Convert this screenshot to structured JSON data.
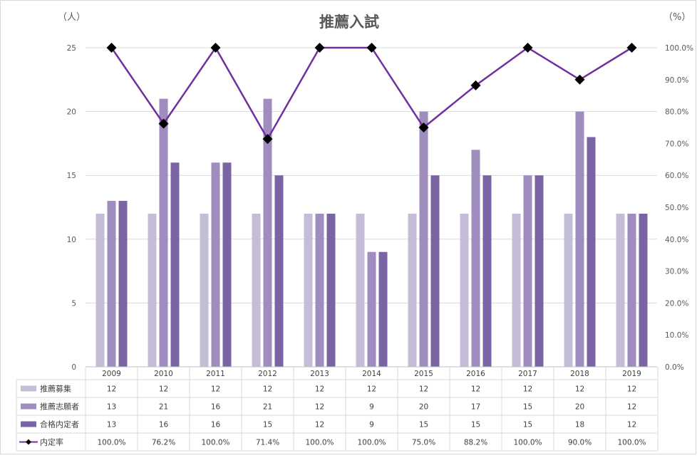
{
  "chart_data": {
    "type": "bar",
    "title": "推薦入試",
    "y_unit_left": "（人）",
    "y_unit_right": "（%）",
    "categories": [
      "2009",
      "2010",
      "2011",
      "2012",
      "2013",
      "2014",
      "2015",
      "2016",
      "2017",
      "2018",
      "2019"
    ],
    "ylim_left": [
      0,
      25
    ],
    "yticks_left": [
      "0",
      "5",
      "10",
      "15",
      "20",
      "25"
    ],
    "ylim_right": [
      0,
      100
    ],
    "yticks_right": [
      "0.0%",
      "10.0%",
      "20.0%",
      "30.0%",
      "40.0%",
      "50.0%",
      "60.0%",
      "70.0%",
      "80.0%",
      "90.0%",
      "100.0%"
    ],
    "grid": true,
    "series": [
      {
        "name": "推薦募集",
        "type": "bar",
        "color": "#c5bdd7",
        "values": [
          12,
          12,
          12,
          12,
          12,
          12,
          12,
          12,
          12,
          12,
          12
        ],
        "labels": [
          "12",
          "12",
          "12",
          "12",
          "12",
          "12",
          "12",
          "12",
          "12",
          "12",
          "12"
        ]
      },
      {
        "name": "推薦志願者",
        "type": "bar",
        "color": "#9e8dbe",
        "values": [
          13,
          21,
          16,
          21,
          12,
          9,
          20,
          17,
          15,
          20,
          12
        ],
        "labels": [
          "13",
          "21",
          "16",
          "21",
          "12",
          "9",
          "20",
          "17",
          "15",
          "20",
          "12"
        ]
      },
      {
        "name": "合格内定者",
        "type": "bar",
        "color": "#7b64a3",
        "values": [
          13,
          16,
          16,
          15,
          12,
          9,
          15,
          15,
          15,
          18,
          12
        ],
        "labels": [
          "13",
          "16",
          "16",
          "15",
          "12",
          "9",
          "15",
          "15",
          "15",
          "18",
          "12"
        ]
      },
      {
        "name": "内定率",
        "type": "line",
        "axis": "right",
        "color": "#7030a0",
        "marker_color": "#000000",
        "values": [
          100.0,
          76.2,
          100.0,
          71.4,
          100.0,
          100.0,
          75.0,
          88.2,
          100.0,
          90.0,
          100.0
        ],
        "labels": [
          "100.0%",
          "76.2%",
          "100.0%",
          "71.4%",
          "100.0%",
          "100.0%",
          "75.0%",
          "88.2%",
          "100.0%",
          "90.0%",
          "100.0%"
        ]
      }
    ]
  }
}
